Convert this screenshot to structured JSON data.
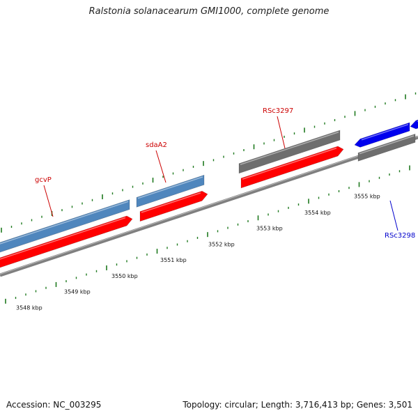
{
  "title": "Ralstonia solanacearum GMI1000, complete genome",
  "accession": "Accession: NC_003295",
  "stats": "Topology: circular; Length: 3,716,413 bp; Genes: 3,501",
  "colors": {
    "backbone": "#7f7f7f",
    "ticks": "#1f7a1f",
    "feature_blue": "#4f86bd",
    "feature_red": "#ff0000",
    "feature_gray": "#6e6e6e",
    "feature_darkblue": "#0000ee",
    "label_red": "#cc0000",
    "label_blue": "#0000cc"
  },
  "kbp_labels": [
    "3548 kbp",
    "3549 kbp",
    "3550 kbp",
    "3551 kbp",
    "3552 kbp",
    "3553 kbp",
    "3554 kbp",
    "3555 kbp"
  ],
  "gene_labels": [
    {
      "name": "gcvP",
      "color": "red"
    },
    {
      "name": "sdaA2",
      "color": "red"
    },
    {
      "name": "RSc3297",
      "color": "red"
    },
    {
      "name": "RSc3298",
      "color": "blue"
    }
  ]
}
